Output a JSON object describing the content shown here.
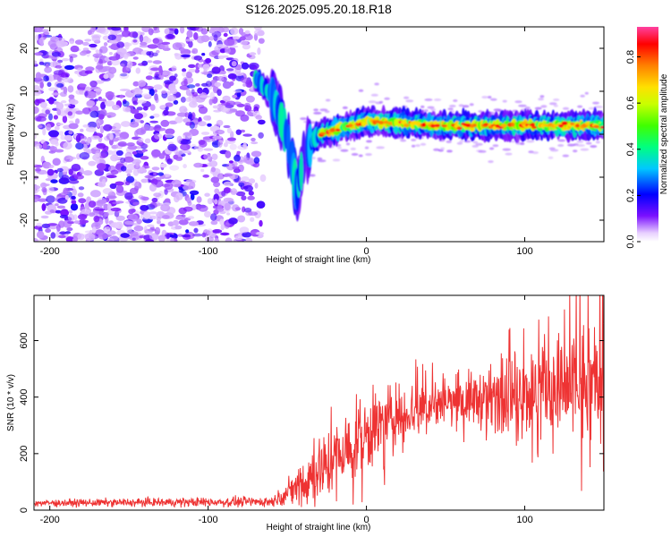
{
  "title": "S126.2025.095.20.18.R18",
  "chart_data": [
    {
      "type": "heatmap",
      "xlabel": "Height of straight line (km)",
      "ylabel": "Frequency (Hz)",
      "xlim": [
        -210,
        150
      ],
      "ylim": [
        -25,
        25
      ],
      "xticks": [
        -200,
        -100,
        0,
        100
      ],
      "yticks": [
        -20,
        -10,
        0,
        10,
        20
      ],
      "grid": false,
      "colorbar": {
        "label": "Normalized spectral amplitude",
        "range": [
          0.0,
          0.93
        ],
        "ticks": [
          0.0,
          0.2,
          0.4,
          0.6,
          0.8
        ]
      },
      "signal_track": [
        {
          "x": -70,
          "y": 13
        },
        {
          "x": -65,
          "y": 11
        },
        {
          "x": -60,
          "y": 9
        },
        {
          "x": -55,
          "y": 5
        },
        {
          "x": -50,
          "y": -1
        },
        {
          "x": -46,
          "y": -8
        },
        {
          "x": -44,
          "y": -14
        },
        {
          "x": -40,
          "y": -6
        },
        {
          "x": -35,
          "y": -2
        },
        {
          "x": -30,
          "y": 0
        },
        {
          "x": -20,
          "y": 1
        },
        {
          "x": 0,
          "y": 3
        },
        {
          "x": 25,
          "y": 2.5
        },
        {
          "x": 50,
          "y": 2
        },
        {
          "x": 75,
          "y": 2
        },
        {
          "x": 100,
          "y": 2
        },
        {
          "x": 125,
          "y": 2
        },
        {
          "x": 150,
          "y": 2
        }
      ]
    },
    {
      "type": "line",
      "xlabel": "Height of straight line (km)",
      "ylabel": "SNR (10 * v/v)",
      "xlim": [
        -210,
        150
      ],
      "ylim": [
        0,
        760
      ],
      "xticks": [
        -200,
        -100,
        0,
        100
      ],
      "yticks": [
        0,
        200,
        400,
        600
      ],
      "grid": false,
      "color": "#ee3333",
      "envelope": [
        {
          "x": -210,
          "mean": 25,
          "spread": 10
        },
        {
          "x": -60,
          "mean": 30,
          "spread": 15
        },
        {
          "x": -50,
          "mean": 60,
          "spread": 30
        },
        {
          "x": -40,
          "mean": 100,
          "spread": 90
        },
        {
          "x": -30,
          "mean": 140,
          "spread": 100
        },
        {
          "x": -20,
          "mean": 180,
          "spread": 110
        },
        {
          "x": -10,
          "mean": 220,
          "spread": 110
        },
        {
          "x": 0,
          "mean": 270,
          "spread": 120
        },
        {
          "x": 20,
          "mean": 340,
          "spread": 90
        },
        {
          "x": 50,
          "mean": 380,
          "spread": 70
        },
        {
          "x": 80,
          "mean": 400,
          "spread": 90
        },
        {
          "x": 100,
          "mean": 420,
          "spread": 130
        },
        {
          "x": 130,
          "mean": 430,
          "spread": 180
        },
        {
          "x": 150,
          "mean": 450,
          "spread": 200
        }
      ]
    }
  ]
}
